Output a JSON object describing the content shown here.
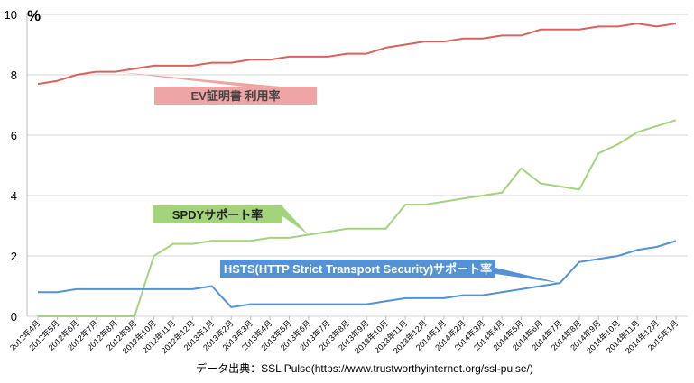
{
  "chart_data": {
    "type": "line",
    "unit_label": "%",
    "ylim": [
      0,
      10
    ],
    "yticks": [
      0,
      2,
      4,
      6,
      8,
      10
    ],
    "grid": true,
    "categories": [
      "2012年4月",
      "2012年5月",
      "2012年6月",
      "2012年7月",
      "2012年8月",
      "2012年9月",
      "2012年10月",
      "2012年11月",
      "2012年12月",
      "2013年1月",
      "2013年2月",
      "2013年3月",
      "2013年4月",
      "2013年5月",
      "2013年6月",
      "2013年7月",
      "2013年8月",
      "2013年9月",
      "2013年10月",
      "2013年11月",
      "2013年12月",
      "2014年1月",
      "2014年2月",
      "2014年3月",
      "2014年4月",
      "2014年5月",
      "2014年6月",
      "2014年7月",
      "2014年8月",
      "2014年9月",
      "2014年10月",
      "2014年11月",
      "2014年12月",
      "2015年1月"
    ],
    "series": [
      {
        "name": "EV証明書 利用率",
        "color": "#d9625f",
        "label_bg": "#eea5a3",
        "label_color": "#444444",
        "values": [
          7.7,
          7.8,
          8.0,
          8.1,
          8.1,
          8.2,
          8.3,
          8.3,
          8.3,
          8.4,
          8.4,
          8.5,
          8.5,
          8.6,
          8.6,
          8.6,
          8.7,
          8.7,
          8.9,
          9.0,
          9.1,
          9.1,
          9.2,
          9.2,
          9.3,
          9.3,
          9.5,
          9.5,
          9.5,
          9.6,
          9.6,
          9.7,
          9.6,
          9.7
        ]
      },
      {
        "name": "SPDYサポート率",
        "color": "#a3d37d",
        "label_bg": "#a3d37d",
        "label_color": "#222222",
        "values": [
          0,
          0,
          0,
          0,
          0,
          0,
          2.0,
          2.4,
          2.4,
          2.5,
          2.5,
          2.5,
          2.6,
          2.6,
          2.7,
          2.8,
          2.9,
          2.9,
          2.9,
          3.7,
          3.7,
          3.8,
          3.9,
          4.0,
          4.1,
          4.9,
          4.4,
          4.3,
          4.2,
          5.4,
          5.7,
          6.1,
          6.3,
          6.5
        ]
      },
      {
        "name": "HSTS(HTTP Strict Transport Security)サポート率",
        "color": "#5392d5",
        "label_bg": "#5392d5",
        "label_color": "#ffffff",
        "values": [
          0.8,
          0.8,
          0.9,
          0.9,
          0.9,
          0.9,
          0.9,
          0.9,
          0.9,
          1.0,
          0.3,
          0.4,
          0.4,
          0.4,
          0.4,
          0.4,
          0.4,
          0.4,
          0.5,
          0.6,
          0.6,
          0.6,
          0.7,
          0.7,
          0.8,
          0.9,
          1.0,
          1.1,
          1.8,
          1.9,
          2.0,
          2.2,
          2.3,
          2.5
        ]
      }
    ],
    "source_note": "データ出典：SSL Pulse(https://www.trustworthyinternet.org/ssl-pulse/)"
  }
}
